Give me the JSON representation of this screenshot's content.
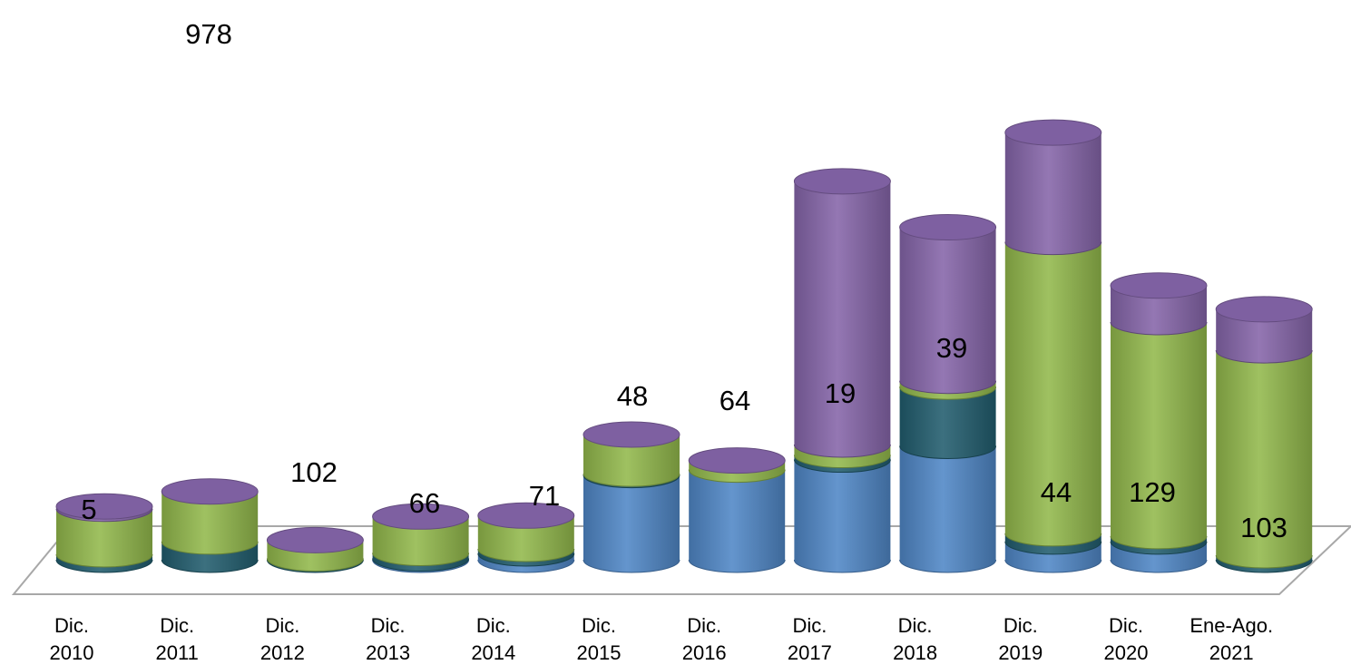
{
  "chart_data": {
    "type": "bar",
    "stacked": true,
    "three_d": true,
    "bar_shape": "cylinder",
    "gridlines": false,
    "legend": "none",
    "title": "",
    "xlabel": "",
    "ylabel": "",
    "categories": [
      [
        "Dic.",
        "2010"
      ],
      [
        "Dic.",
        "2011"
      ],
      [
        "Dic.",
        "2012"
      ],
      [
        "Dic.",
        "2013"
      ],
      [
        "Dic.",
        "2014"
      ],
      [
        "Dic.",
        "2015"
      ],
      [
        "Dic.",
        "2016"
      ],
      [
        "Dic.",
        "2017"
      ],
      [
        "Dic.",
        "2018"
      ],
      [
        "Dic.",
        "2019"
      ],
      [
        "Dic.",
        "2020"
      ],
      [
        "Ene-Ago.",
        "2021"
      ]
    ],
    "series": [
      {
        "color": "#4F86C6",
        "values": [
          0,
          0,
          0,
          3,
          14,
          186,
          198,
          220,
          250,
          40,
          40,
          0
        ]
      },
      {
        "color": "#215D6E",
        "values": [
          12,
          40,
          3,
          12,
          10,
          3,
          0,
          10,
          130,
          18,
          12,
          10
        ]
      },
      {
        "color": "#92B84C",
        "values": [
          100,
          110,
          40,
          80,
          73,
          86,
          20,
          23,
          13,
          640,
          470,
          450
        ]
      },
      {
        "color": "#8565A9",
        "values": [
          5,
          0,
          0,
          0,
          0,
          0,
          0,
          578,
          337,
          240,
          80,
          90
        ]
      }
    ],
    "ylim": [
      0,
      1000
    ],
    "data_labels": [
      {
        "text": "978",
        "category_index": 0
      },
      {
        "text": "5",
        "category_index": 0
      },
      {
        "text": "102",
        "category_index": 2
      },
      {
        "text": "66",
        "category_index": 3
      },
      {
        "text": "71",
        "category_index": 4
      },
      {
        "text": "48",
        "category_index": 5
      },
      {
        "text": "64",
        "category_index": 6
      },
      {
        "text": "19",
        "category_index": 7
      },
      {
        "text": "39",
        "category_index": 8
      },
      {
        "text": "44",
        "category_index": 9
      },
      {
        "text": "129",
        "category_index": 10
      },
      {
        "text": "103",
        "category_index": 11
      }
    ]
  }
}
